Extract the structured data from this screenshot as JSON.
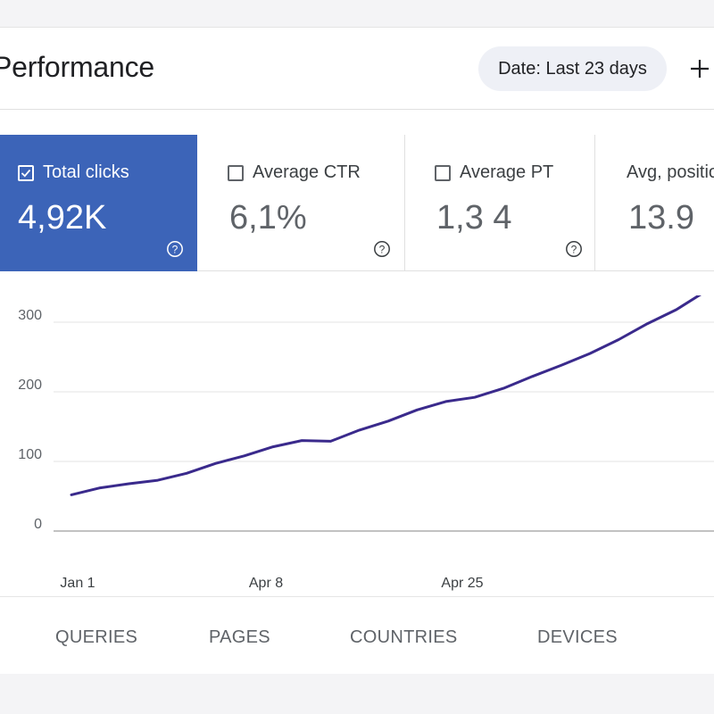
{
  "header": {
    "title": "Performance",
    "date_label": "Date: Last 23 days"
  },
  "metrics": [
    {
      "label": "Total clicks",
      "value": "4,92K",
      "checked": true
    },
    {
      "label": "Average CTR",
      "value": "6,1%",
      "checked": false
    },
    {
      "label": "Average PT",
      "value": "1,3 4",
      "checked": false
    },
    {
      "label": "Avg, position",
      "value": "13.9",
      "checked": false
    }
  ],
  "chart_data": {
    "type": "line",
    "x": [
      "Jan 1",
      "",
      "",
      "",
      "",
      "",
      "",
      "",
      "",
      "",
      "",
      "",
      "",
      "",
      "",
      "",
      "",
      "",
      "",
      "",
      "",
      "",
      ""
    ],
    "x_tick_labels": [
      "Jan 1",
      "Apr 8",
      "Apr 25"
    ],
    "series": [
      {
        "values": [
          52,
          62,
          68,
          73,
          83,
          97,
          108,
          121,
          130,
          129,
          145,
          158,
          174,
          186,
          192,
          205,
          222,
          238,
          255,
          275,
          298,
          318,
          344
        ]
      }
    ],
    "y_ticks": [
      0,
      100,
      200,
      300
    ],
    "ylim": [
      0,
      300
    ],
    "grid": true,
    "line_color": "#3a2a8c"
  },
  "tabs": [
    "QUERIES",
    "PAGES",
    "COUNTRIES",
    "DEVICES"
  ]
}
